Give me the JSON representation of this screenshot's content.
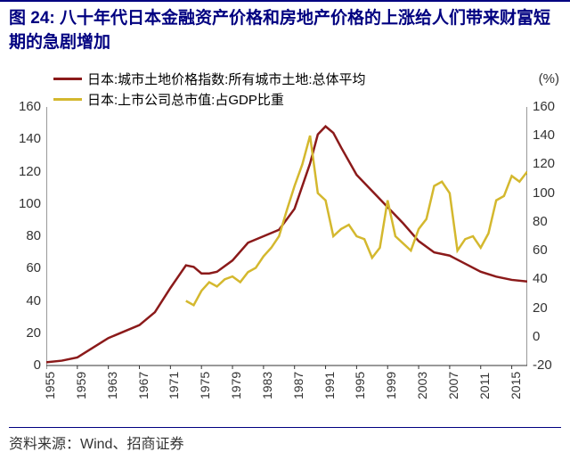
{
  "title": "图 24: 八十年代日本金融资产价格和房地产价格的上涨给人们带来财富短期的急剧增加",
  "legend": {
    "series1": {
      "label": "日本:城市土地价格指数:所有城市土地:总体平均",
      "color": "#8b1a1a"
    },
    "series2": {
      "label": "日本:上市公司总市值:占GDP比重",
      "color": "#d4b82e"
    }
  },
  "right_unit": "(%)",
  "source": "资料来源：Wind、招商证券",
  "chart": {
    "type": "line",
    "background_color": "#ffffff",
    "grid_color": "#d0d0d0",
    "axis_color": "#333333",
    "line_width": 2.5,
    "left_axis": {
      "min": 0,
      "max": 160,
      "step": 20
    },
    "right_axis": {
      "min": -20,
      "max": 160,
      "step": 20
    },
    "x_years": [
      1955,
      1959,
      1963,
      1967,
      1971,
      1975,
      1979,
      1983,
      1987,
      1991,
      1995,
      1999,
      2003,
      2007,
      2011,
      2015
    ],
    "x_min": 1955,
    "x_max": 2017,
    "series1_data": [
      [
        1955,
        2
      ],
      [
        1957,
        3
      ],
      [
        1959,
        5
      ],
      [
        1961,
        11
      ],
      [
        1963,
        17
      ],
      [
        1965,
        21
      ],
      [
        1967,
        25
      ],
      [
        1969,
        33
      ],
      [
        1971,
        48
      ],
      [
        1972,
        55
      ],
      [
        1973,
        62
      ],
      [
        1974,
        61
      ],
      [
        1975,
        57
      ],
      [
        1976,
        57
      ],
      [
        1977,
        58
      ],
      [
        1979,
        65
      ],
      [
        1981,
        76
      ],
      [
        1983,
        80
      ],
      [
        1985,
        84
      ],
      [
        1987,
        97
      ],
      [
        1989,
        125
      ],
      [
        1990,
        143
      ],
      [
        1991,
        148
      ],
      [
        1992,
        144
      ],
      [
        1993,
        135
      ],
      [
        1995,
        118
      ],
      [
        1997,
        108
      ],
      [
        1999,
        98
      ],
      [
        2001,
        88
      ],
      [
        2003,
        77
      ],
      [
        2005,
        70
      ],
      [
        2007,
        68
      ],
      [
        2009,
        63
      ],
      [
        2011,
        58
      ],
      [
        2013,
        55
      ],
      [
        2015,
        53
      ],
      [
        2017,
        52
      ]
    ],
    "series2_data": [
      [
        1973,
        25
      ],
      [
        1974,
        22
      ],
      [
        1975,
        32
      ],
      [
        1976,
        38
      ],
      [
        1977,
        35
      ],
      [
        1978,
        40
      ],
      [
        1979,
        42
      ],
      [
        1980,
        38
      ],
      [
        1981,
        45
      ],
      [
        1982,
        48
      ],
      [
        1983,
        56
      ],
      [
        1984,
        62
      ],
      [
        1985,
        70
      ],
      [
        1986,
        88
      ],
      [
        1987,
        105
      ],
      [
        1988,
        120
      ],
      [
        1989,
        140
      ],
      [
        1990,
        100
      ],
      [
        1991,
        95
      ],
      [
        1992,
        70
      ],
      [
        1993,
        75
      ],
      [
        1994,
        78
      ],
      [
        1995,
        70
      ],
      [
        1996,
        68
      ],
      [
        1997,
        55
      ],
      [
        1998,
        62
      ],
      [
        1999,
        95
      ],
      [
        2000,
        70
      ],
      [
        2001,
        65
      ],
      [
        2002,
        60
      ],
      [
        2003,
        75
      ],
      [
        2004,
        82
      ],
      [
        2005,
        105
      ],
      [
        2006,
        108
      ],
      [
        2007,
        100
      ],
      [
        2008,
        60
      ],
      [
        2009,
        68
      ],
      [
        2010,
        70
      ],
      [
        2011,
        62
      ],
      [
        2012,
        72
      ],
      [
        2013,
        95
      ],
      [
        2014,
        98
      ],
      [
        2015,
        112
      ],
      [
        2016,
        108
      ],
      [
        2017,
        115
      ]
    ]
  }
}
